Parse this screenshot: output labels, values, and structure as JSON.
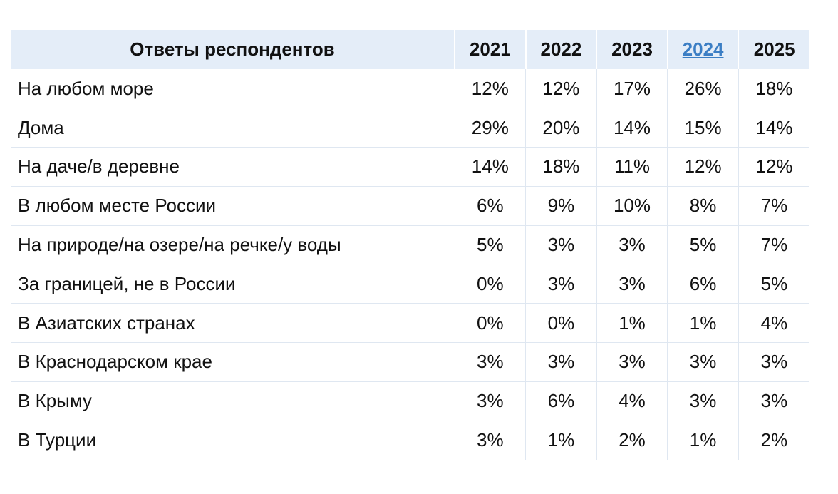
{
  "table": {
    "header": {
      "label": "Ответы респондентов",
      "years": [
        "2021",
        "2022",
        "2023",
        "2024",
        "2025"
      ],
      "linked_year_index": 3,
      "link_color": "#3b7ec4",
      "header_bg": "#e4edf8"
    },
    "rows": [
      {
        "label": "На любом море",
        "values": [
          "12%",
          "12%",
          "17%",
          "26%",
          "18%"
        ]
      },
      {
        "label": "Дома",
        "values": [
          "29%",
          "20%",
          "14%",
          "15%",
          "14%"
        ]
      },
      {
        "label": "На даче/в деревне",
        "values": [
          "14%",
          "18%",
          "11%",
          "12%",
          "12%"
        ]
      },
      {
        "label": "В любом месте России",
        "values": [
          "6%",
          "9%",
          "10%",
          "8%",
          "7%"
        ]
      },
      {
        "label": "На природе/на озере/на речке/у воды",
        "values": [
          "5%",
          "3%",
          "3%",
          "5%",
          "7%"
        ]
      },
      {
        "label": "За границей, не в России",
        "values": [
          "0%",
          "3%",
          "3%",
          "6%",
          "5%"
        ]
      },
      {
        "label": "В Азиатских странах",
        "values": [
          "0%",
          "0%",
          "1%",
          "1%",
          "4%"
        ]
      },
      {
        "label": "В Краснодарском крае",
        "values": [
          "3%",
          "3%",
          "3%",
          "3%",
          "3%"
        ]
      },
      {
        "label": "В Крыму",
        "values": [
          "3%",
          "6%",
          "4%",
          "3%",
          "3%"
        ]
      },
      {
        "label": "В Турции",
        "values": [
          "3%",
          "1%",
          "2%",
          "1%",
          "2%"
        ]
      }
    ]
  }
}
